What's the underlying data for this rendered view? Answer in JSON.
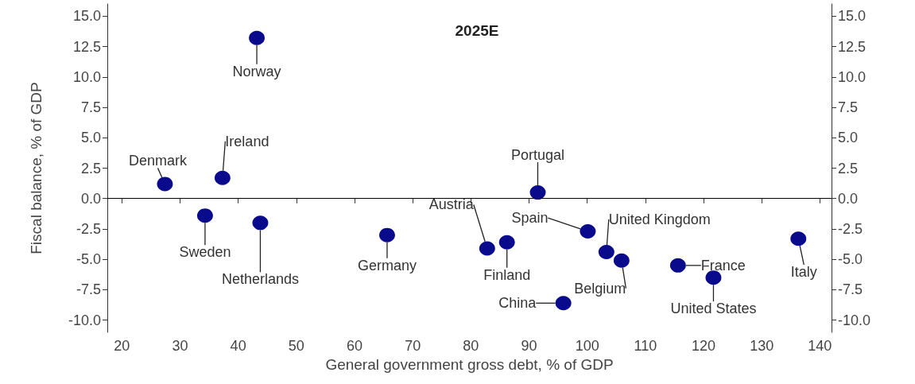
{
  "chart_data": {
    "type": "scatter",
    "title": "2025E",
    "xlabel": "General government gross debt, % of GDP",
    "ylabel": "Fiscal balance, % of GDP",
    "x": [
      27.4,
      37.3,
      43.2,
      34.3,
      43.8,
      65.6,
      82.8,
      86.2,
      91.5,
      100.1,
      103.3,
      105.9,
      95.9,
      115.6,
      121.7,
      136.3
    ],
    "series": [
      {
        "color": "#0a0a8c",
        "values": [
          1.2,
          1.7,
          13.2,
          -1.4,
          -2.0,
          -3.0,
          -4.1,
          -3.6,
          0.5,
          -2.7,
          -4.4,
          -5.1,
          -8.6,
          -5.5,
          -6.5,
          -3.3
        ]
      }
    ],
    "annotations": [
      {
        "text": "Denmark",
        "x": 27.4,
        "y": 1.2
      },
      {
        "text": "Ireland",
        "x": 37.3,
        "y": 1.7
      },
      {
        "text": "Norway",
        "x": 43.2,
        "y": 13.2
      },
      {
        "text": "Sweden",
        "x": 34.3,
        "y": -1.4
      },
      {
        "text": "Netherlands",
        "x": 43.8,
        "y": -2.0
      },
      {
        "text": "Germany",
        "x": 65.6,
        "y": -3.0
      },
      {
        "text": "Austria",
        "x": 82.8,
        "y": -4.1
      },
      {
        "text": "Finland",
        "x": 86.2,
        "y": -3.6
      },
      {
        "text": "Portugal",
        "x": 91.5,
        "y": 0.5
      },
      {
        "text": "Spain",
        "x": 100.1,
        "y": -2.7
      },
      {
        "text": "United Kingdom",
        "x": 103.3,
        "y": -4.4
      },
      {
        "text": "Belgium",
        "x": 105.9,
        "y": -5.1
      },
      {
        "text": "China",
        "x": 95.9,
        "y": -8.6
      },
      {
        "text": "France",
        "x": 115.6,
        "y": -5.5
      },
      {
        "text": "United States",
        "x": 121.7,
        "y": -6.5
      },
      {
        "text": "Italy",
        "x": 136.3,
        "y": -3.3
      }
    ],
    "xlim": [
      17.5,
      142
    ],
    "xticks": [
      20,
      30,
      40,
      50,
      60,
      70,
      80,
      90,
      100,
      110,
      120,
      130,
      140
    ],
    "ylim": [
      -11,
      16
    ],
    "yticks": [
      {
        "value": -10,
        "label": "-10.0"
      },
      {
        "value": -7.5,
        "label": "-7.5"
      },
      {
        "value": -5,
        "label": "-5.0"
      },
      {
        "value": -2.5,
        "label": "-2.5"
      },
      {
        "value": 0,
        "label": "0.0"
      },
      {
        "value": 2.5,
        "label": "2.5"
      },
      {
        "value": 5,
        "label": "5.0"
      },
      {
        "value": 7.5,
        "label": "7.5"
      },
      {
        "value": 10,
        "label": "10.0"
      },
      {
        "value": 12.5,
        "label": "12.5"
      },
      {
        "value": 15,
        "label": "15.0"
      }
    ],
    "y2lim": [
      -11,
      16
    ],
    "y2ticks": [
      {
        "value": -10,
        "label": "-10.0"
      },
      {
        "value": -7.5,
        "label": "-7.5"
      },
      {
        "value": -5,
        "label": "-5.0"
      },
      {
        "value": -2.5,
        "label": "-2.5"
      },
      {
        "value": 0,
        "label": "0.0"
      },
      {
        "value": 2.5,
        "label": "2.5"
      },
      {
        "value": 5,
        "label": "5.0"
      },
      {
        "value": 7.5,
        "label": "7.5"
      },
      {
        "value": 10,
        "label": "10.0"
      },
      {
        "value": 12.5,
        "label": "12.5"
      },
      {
        "value": 15,
        "label": "15.0"
      }
    ],
    "ref_lines": [
      {
        "axis": "y",
        "value": 0,
        "color": "#000000",
        "line_style": "solid"
      }
    ],
    "grid": false,
    "marker": "circle"
  }
}
